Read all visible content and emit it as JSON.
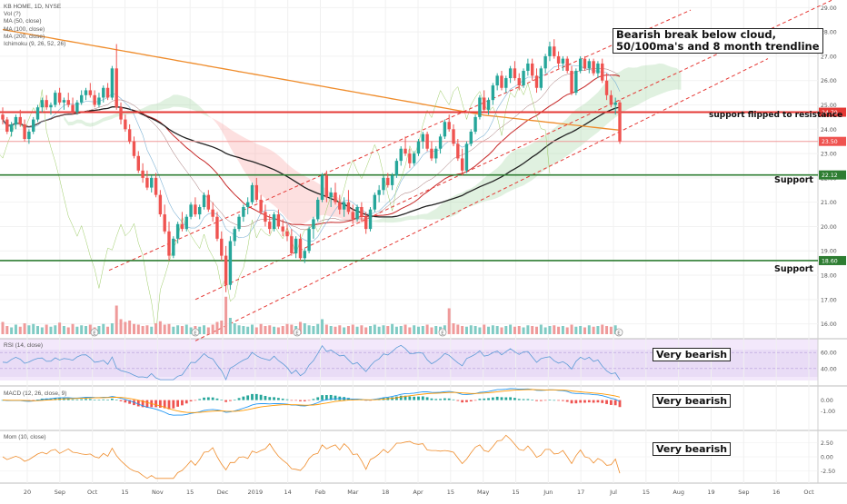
{
  "header": {
    "symbol": "KB HOME, 1D, NYSE",
    "legend": [
      "Vol (?)",
      "MA (50, close)",
      "MA (100, close)",
      "MA (200, close)",
      "Ichimoku (9, 26, 52, 26)"
    ]
  },
  "panes": {
    "rsi_label": "RSI (14, close)",
    "macd_label": "MACD (12, 26, close, 9)",
    "mom_label": "Mom (10, close)"
  },
  "annotations": {
    "main_line1": "Bearish break below cloud,",
    "main_line2": "50/100ma's and 8 month trendline",
    "resistance_note": "support flipped to resistance",
    "support1": "Support",
    "support2": "Support",
    "rsi_note": "Very bearish",
    "macd_note": "Very bearish",
    "mom_note": "Very bearish"
  },
  "price_axis": [
    "29.00",
    "28.00",
    "27.00",
    "26.00",
    "25.00",
    "24.00",
    "23.00",
    "22.00",
    "21.00",
    "20.00",
    "19.00",
    "18.00",
    "17.00",
    "16.00"
  ],
  "price_badges": [
    {
      "label": "24.70",
      "color": "#e53935"
    },
    {
      "label": "23.50",
      "color": "#ef5350"
    },
    {
      "label": "22.12",
      "color": "#2e7d32"
    },
    {
      "label": "18.60",
      "color": "#2e7d32"
    }
  ],
  "rsi_axis": [
    "60.00",
    "40.00"
  ],
  "macd_axis": [
    "0.00",
    "-1.00"
  ],
  "mom_axis": [
    "2.50",
    "0.00",
    "-2.50"
  ],
  "date_axis": [
    "20",
    "Sep",
    "Oct",
    "15",
    "Nov",
    "15",
    "Dec",
    "2019",
    "14",
    "Feb",
    "Mar",
    "18",
    "Apr",
    "15",
    "May",
    "15",
    "Jun",
    "17",
    "Jul",
    "15",
    "Aug",
    "19",
    "Sep",
    "16",
    "Oct"
  ],
  "colors": {
    "up": "#26a69a",
    "down": "#ef5350",
    "resistance": "#e53935",
    "support": "#2e7d32",
    "ma50": "#c62828",
    "ma100": "#222222",
    "ma200": "#ef8c2b",
    "trend": "#e53935"
  },
  "chart_data": [
    {
      "type": "candlestick",
      "title": "KB HOME, 1D, NYSE",
      "ylim": [
        15.5,
        29.2
      ],
      "candles": [
        [
          24.6,
          24.9,
          24.2,
          24.4
        ],
        [
          24.4,
          24.5,
          23.8,
          23.9
        ],
        [
          23.9,
          24.3,
          23.7,
          24.2
        ],
        [
          24.2,
          24.6,
          24.0,
          24.5
        ],
        [
          24.5,
          24.8,
          24.1,
          24.2
        ],
        [
          24.2,
          24.4,
          23.5,
          23.6
        ],
        [
          23.6,
          24.0,
          23.4,
          23.9
        ],
        [
          23.9,
          24.5,
          23.8,
          24.4
        ],
        [
          24.4,
          25.0,
          24.3,
          24.9
        ],
        [
          24.9,
          25.3,
          24.7,
          25.2
        ],
        [
          25.2,
          25.4,
          24.8,
          24.9
        ],
        [
          24.9,
          25.1,
          24.6,
          25.0
        ],
        [
          25.0,
          25.6,
          24.9,
          25.5
        ],
        [
          25.5,
          25.7,
          25.0,
          25.1
        ],
        [
          25.1,
          25.3,
          24.8,
          25.2
        ],
        [
          25.2,
          25.5,
          24.9,
          25.0
        ],
        [
          25.0,
          25.3,
          24.6,
          24.7
        ],
        [
          24.7,
          25.2,
          24.6,
          25.1
        ],
        [
          25.1,
          25.6,
          25.0,
          25.4
        ],
        [
          25.4,
          25.7,
          25.2,
          25.6
        ],
        [
          25.6,
          25.9,
          25.3,
          25.4
        ],
        [
          25.4,
          25.6,
          24.9,
          25.0
        ],
        [
          25.0,
          25.5,
          24.9,
          25.3
        ],
        [
          25.3,
          25.8,
          25.1,
          25.7
        ],
        [
          25.7,
          25.9,
          25.2,
          25.3
        ],
        [
          25.3,
          26.6,
          25.2,
          26.5
        ],
        [
          26.5,
          27.5,
          24.8,
          24.9
        ],
        [
          24.9,
          25.1,
          24.2,
          24.4
        ],
        [
          24.4,
          24.6,
          23.9,
          24.0
        ],
        [
          24.0,
          24.2,
          23.4,
          23.5
        ],
        [
          23.5,
          23.7,
          22.8,
          22.9
        ],
        [
          22.9,
          23.1,
          22.2,
          22.3
        ],
        [
          22.3,
          22.6,
          21.8,
          22.0
        ],
        [
          22.0,
          22.3,
          21.5,
          21.6
        ],
        [
          21.6,
          22.1,
          21.4,
          22.0
        ],
        [
          22.0,
          22.2,
          21.2,
          21.3
        ],
        [
          21.3,
          21.5,
          20.4,
          20.5
        ],
        [
          20.5,
          20.9,
          19.7,
          19.8
        ],
        [
          19.8,
          20.2,
          18.6,
          18.8
        ],
        [
          18.8,
          19.6,
          18.7,
          19.5
        ],
        [
          19.5,
          20.2,
          19.3,
          20.1
        ],
        [
          20.1,
          20.6,
          19.8,
          19.9
        ],
        [
          19.9,
          20.5,
          19.8,
          20.4
        ],
        [
          20.4,
          21.0,
          20.3,
          20.9
        ],
        [
          20.9,
          21.2,
          20.4,
          20.5
        ],
        [
          20.5,
          20.9,
          20.3,
          20.8
        ],
        [
          20.8,
          21.4,
          20.7,
          21.3
        ],
        [
          21.3,
          21.5,
          20.6,
          20.7
        ],
        [
          20.7,
          21.0,
          20.2,
          20.4
        ],
        [
          20.4,
          20.6,
          19.4,
          19.5
        ],
        [
          19.5,
          19.8,
          18.6,
          18.8
        ],
        [
          18.8,
          19.2,
          17.3,
          17.6
        ],
        [
          17.6,
          19.6,
          17.4,
          19.4
        ],
        [
          19.4,
          20.0,
          19.2,
          19.9
        ],
        [
          19.9,
          20.5,
          19.8,
          20.4
        ],
        [
          20.4,
          20.9,
          20.2,
          20.8
        ],
        [
          20.8,
          21.2,
          20.5,
          21.0
        ],
        [
          21.0,
          21.8,
          20.9,
          21.7
        ],
        [
          21.7,
          22.0,
          21.0,
          21.1
        ],
        [
          21.1,
          21.3,
          20.5,
          20.6
        ],
        [
          20.6,
          20.9,
          20.0,
          20.2
        ],
        [
          20.2,
          20.5,
          19.7,
          19.9
        ],
        [
          19.9,
          20.6,
          19.8,
          20.5
        ],
        [
          20.5,
          20.7,
          19.9,
          20.0
        ],
        [
          20.0,
          20.3,
          19.6,
          19.8
        ],
        [
          19.8,
          20.1,
          19.4,
          19.6
        ],
        [
          19.6,
          19.9,
          18.8,
          18.9
        ],
        [
          18.9,
          19.6,
          18.7,
          19.5
        ],
        [
          19.5,
          19.7,
          18.6,
          18.7
        ],
        [
          18.7,
          19.1,
          18.5,
          19.0
        ],
        [
          19.0,
          20.0,
          18.9,
          19.9
        ],
        [
          19.9,
          20.4,
          19.5,
          20.3
        ],
        [
          20.3,
          21.2,
          20.2,
          21.1
        ],
        [
          21.1,
          22.2,
          21.0,
          22.1
        ],
        [
          22.1,
          22.3,
          21.0,
          21.2
        ],
        [
          21.2,
          21.6,
          20.8,
          21.4
        ],
        [
          21.4,
          21.8,
          20.9,
          21.0
        ],
        [
          21.0,
          21.3,
          20.5,
          20.7
        ],
        [
          20.7,
          21.2,
          20.4,
          21.0
        ],
        [
          21.0,
          21.5,
          20.5,
          20.6
        ],
        [
          20.6,
          20.9,
          20.1,
          20.3
        ],
        [
          20.3,
          20.9,
          20.2,
          20.8
        ],
        [
          20.8,
          21.0,
          20.2,
          20.4
        ],
        [
          20.4,
          20.6,
          19.7,
          19.9
        ],
        [
          19.9,
          20.8,
          19.8,
          20.7
        ],
        [
          20.7,
          21.4,
          20.6,
          21.3
        ],
        [
          21.3,
          21.7,
          21.0,
          21.5
        ],
        [
          21.5,
          22.1,
          21.3,
          22.0
        ],
        [
          22.0,
          22.2,
          21.6,
          21.7
        ],
        [
          21.7,
          22.2,
          21.5,
          22.1
        ],
        [
          22.1,
          22.8,
          22.0,
          22.7
        ],
        [
          22.7,
          23.3,
          22.5,
          23.2
        ],
        [
          23.2,
          23.7,
          22.9,
          23.0
        ],
        [
          23.0,
          23.2,
          22.4,
          22.6
        ],
        [
          22.6,
          23.1,
          22.5,
          23.0
        ],
        [
          23.0,
          23.6,
          22.9,
          23.5
        ],
        [
          23.5,
          23.9,
          23.2,
          23.8
        ],
        [
          23.8,
          23.9,
          23.1,
          23.2
        ],
        [
          23.2,
          23.5,
          22.7,
          22.8
        ],
        [
          22.8,
          23.3,
          22.6,
          23.2
        ],
        [
          23.2,
          23.8,
          23.0,
          23.7
        ],
        [
          23.7,
          24.4,
          23.6,
          24.3
        ],
        [
          24.3,
          24.6,
          23.9,
          24.0
        ],
        [
          24.0,
          24.2,
          23.3,
          23.4
        ],
        [
          23.4,
          23.6,
          22.7,
          22.8
        ],
        [
          22.8,
          23.2,
          22.1,
          22.3
        ],
        [
          22.3,
          23.5,
          22.2,
          23.4
        ],
        [
          23.4,
          24.0,
          23.3,
          23.9
        ],
        [
          23.9,
          24.6,
          23.8,
          24.5
        ],
        [
          24.5,
          25.4,
          24.4,
          25.3
        ],
        [
          25.3,
          25.6,
          24.7,
          24.8
        ],
        [
          24.8,
          25.3,
          24.6,
          25.2
        ],
        [
          25.2,
          25.9,
          25.0,
          25.8
        ],
        [
          25.8,
          26.3,
          25.6,
          26.2
        ],
        [
          26.2,
          26.4,
          25.6,
          25.7
        ],
        [
          25.7,
          26.2,
          25.5,
          26.1
        ],
        [
          26.1,
          26.6,
          25.9,
          26.5
        ],
        [
          26.5,
          26.8,
          26.0,
          26.1
        ],
        [
          26.1,
          26.3,
          25.6,
          25.8
        ],
        [
          25.8,
          26.5,
          25.7,
          26.4
        ],
        [
          26.4,
          26.9,
          26.2,
          26.7
        ],
        [
          26.7,
          26.9,
          26.0,
          26.2
        ],
        [
          26.2,
          26.5,
          25.5,
          25.7
        ],
        [
          25.7,
          26.6,
          25.6,
          26.5
        ],
        [
          26.5,
          27.1,
          26.3,
          27.0
        ],
        [
          27.0,
          27.6,
          26.8,
          27.4
        ],
        [
          27.4,
          27.7,
          26.9,
          27.0
        ],
        [
          27.0,
          27.2,
          26.5,
          26.7
        ],
        [
          26.7,
          27.0,
          26.4,
          26.9
        ],
        [
          26.9,
          27.0,
          26.3,
          26.4
        ],
        [
          26.4,
          26.6,
          25.4,
          25.5
        ],
        [
          25.5,
          26.5,
          25.4,
          26.4
        ],
        [
          26.4,
          27.0,
          26.3,
          26.9
        ],
        [
          26.9,
          27.0,
          26.4,
          26.5
        ],
        [
          26.5,
          26.9,
          26.3,
          26.8
        ],
        [
          26.8,
          26.9,
          26.2,
          26.3
        ],
        [
          26.3,
          26.8,
          26.1,
          26.7
        ],
        [
          26.7,
          26.9,
          25.9,
          26.0
        ],
        [
          26.0,
          26.3,
          25.2,
          25.4
        ],
        [
          25.4,
          25.6,
          24.9,
          25.0
        ],
        [
          25.0,
          25.3,
          24.6,
          25.1
        ],
        [
          25.1,
          25.2,
          23.4,
          23.5
        ]
      ],
      "volume": [
        18,
        12,
        10,
        14,
        11,
        16,
        13,
        15,
        12,
        10,
        14,
        11,
        13,
        17,
        12,
        10,
        15,
        11,
        13,
        12,
        14,
        10,
        12,
        15,
        11,
        16,
        42,
        22,
        18,
        20,
        15,
        14,
        12,
        13,
        11,
        16,
        19,
        14,
        15,
        11,
        13,
        12,
        14,
        10,
        12,
        11,
        13,
        10,
        14,
        18,
        20,
        55,
        24,
        16,
        13,
        12,
        11,
        14,
        10,
        15,
        12,
        13,
        11,
        10,
        12,
        15,
        14,
        12,
        18,
        16,
        13,
        12,
        15,
        22,
        14,
        12,
        11,
        13,
        10,
        12,
        14,
        11,
        13,
        10,
        12,
        14,
        11,
        13,
        12,
        15,
        11,
        12,
        14,
        10,
        13,
        11,
        12,
        14,
        10,
        12,
        11,
        13,
        38,
        16,
        14,
        12,
        11,
        13,
        12,
        10,
        14,
        11,
        13,
        12,
        10,
        12,
        14,
        11,
        12,
        10,
        13,
        12,
        11,
        14,
        10,
        12,
        13,
        11,
        12,
        10,
        14,
        11,
        12,
        10,
        13,
        11,
        12,
        14,
        12,
        11,
        13
      ],
      "levels": {
        "resistance": 24.7,
        "close": 23.5,
        "support_1": 22.12,
        "support_2": 18.6
      }
    },
    {
      "type": "line",
      "title": "RSI (14, close)",
      "ylim": [
        25,
        75
      ]
    },
    {
      "type": "bar",
      "title": "MACD (12, 26, close, 9)",
      "ylim": [
        -1.6,
        1.2
      ]
    },
    {
      "type": "line",
      "title": "Mom (10, close)",
      "ylim": [
        -4,
        4
      ]
    }
  ]
}
